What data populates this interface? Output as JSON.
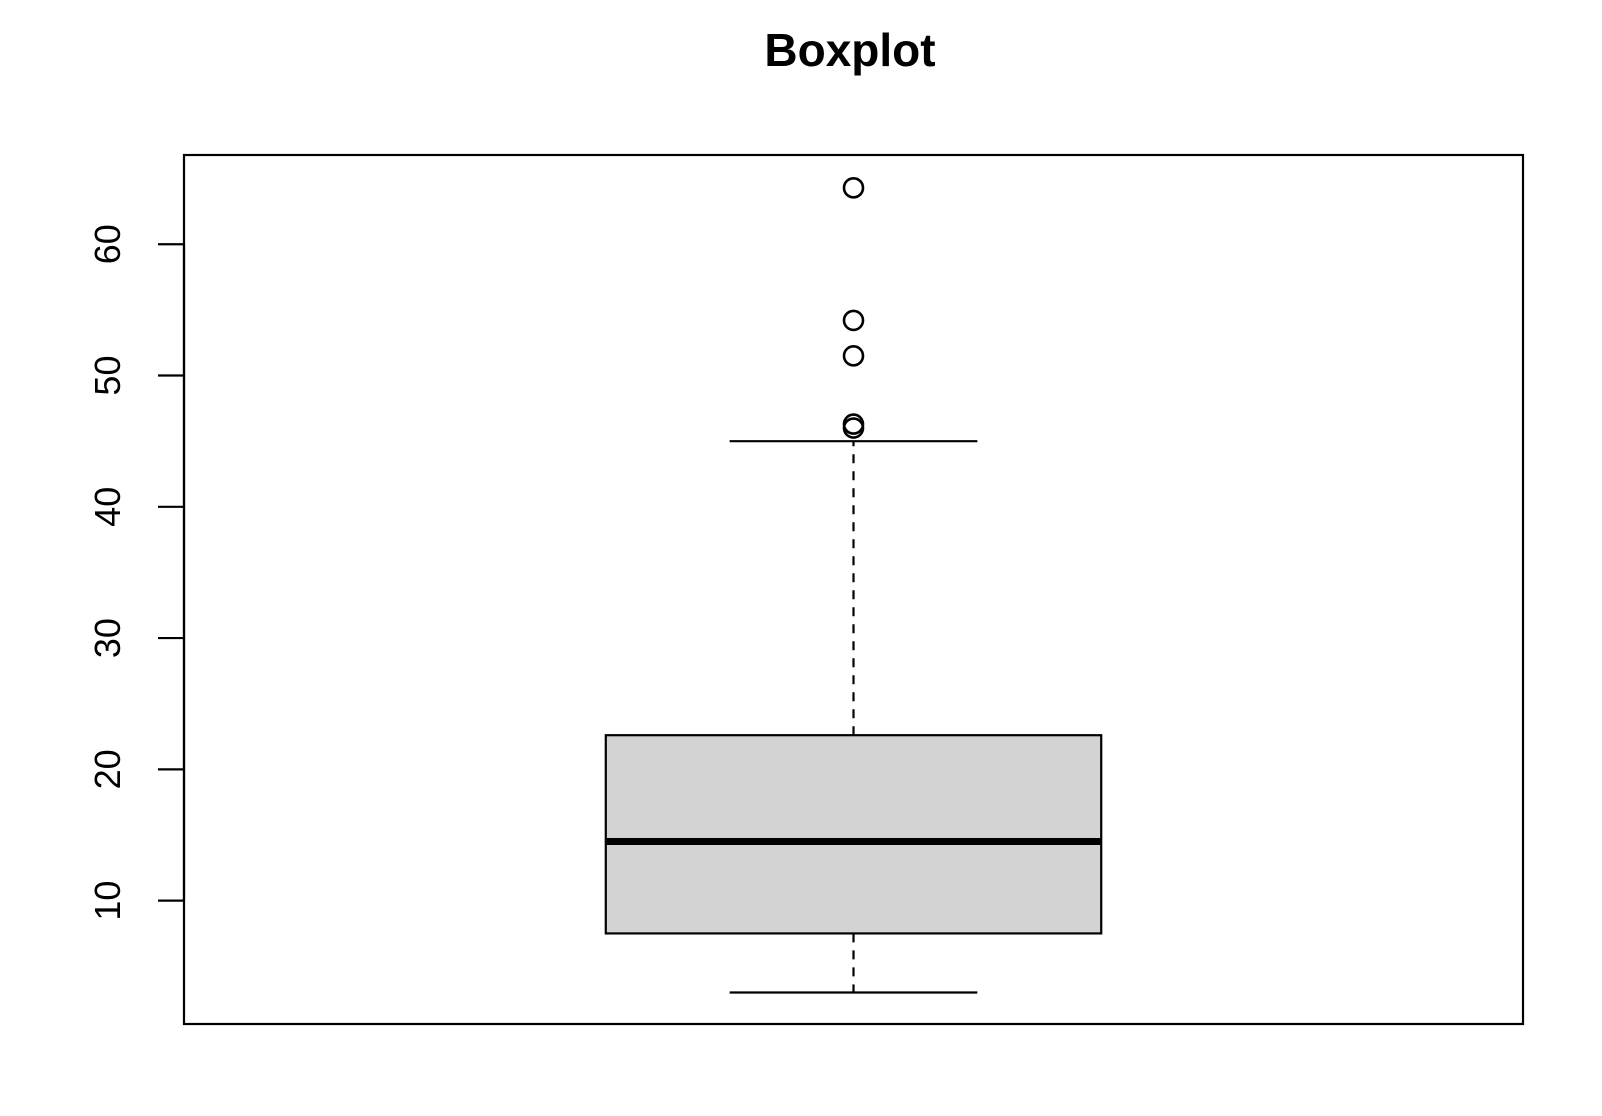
{
  "chart_data": {
    "type": "boxplot",
    "title": "Boxplot",
    "xlabel": "",
    "ylabel": "",
    "ylim": [
      0.6,
      66.8
    ],
    "y_ticks": [
      10,
      20,
      30,
      40,
      50,
      60
    ],
    "y_tick_labels": [
      "10",
      "20",
      "30",
      "40",
      "50",
      "60"
    ],
    "grid": false,
    "legend": "none",
    "colors": {
      "box_fill": "#d3d3d3",
      "stroke": "#000000"
    },
    "boxes": [
      {
        "whisker_low": 3.0,
        "q1": 7.5,
        "median": 14.5,
        "q3": 22.6,
        "whisker_high": 45.0,
        "outliers": [
          46.0,
          46.3,
          51.5,
          54.2,
          64.3
        ]
      }
    ]
  }
}
